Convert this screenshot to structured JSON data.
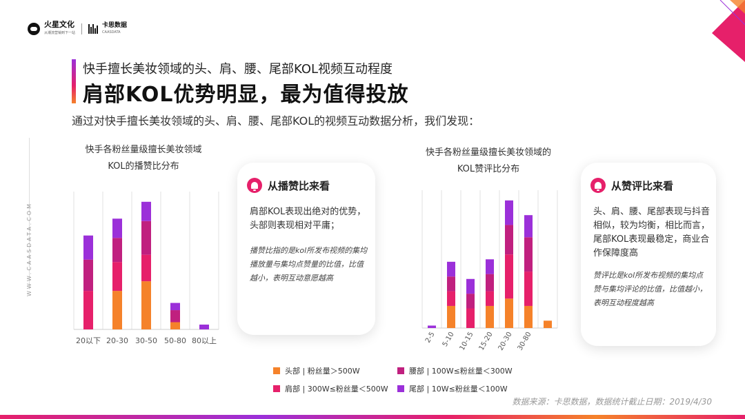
{
  "logo": {
    "brand1": "火星文化",
    "brand1_sub": "从潮流营销到下一站",
    "brand2": "卡思数据",
    "brand2_sub": "CAASDATA"
  },
  "header": {
    "subtitle": "快手擅长美妆领域的头、肩、腰、尾部KOL视频互动程度",
    "title": "肩部KOL优势明显，最为值得投放",
    "description": "通过对快手擅长美妆领域的头、肩、腰、尾部KOL的视频互动数据分析，我们发现："
  },
  "side_text": "WWW.CAASDATA.COM",
  "colors": {
    "head": "#f5822a",
    "shoulder": "#e6206a",
    "waist": "#c0207f",
    "tail": "#9b30d9",
    "accent": "#e6206a"
  },
  "chart_data": [
    {
      "type": "bar",
      "stacked": true,
      "title": "快手各粉丝量级擅长美妆领域KOL的播赞比分布",
      "categories": [
        "20以下",
        "20-30",
        "30-50",
        "50-80",
        "80以上"
      ],
      "series": [
        {
          "name": "头部 | 粉丝量＞500W",
          "values": [
            0,
            16,
            20,
            3,
            0
          ]
        },
        {
          "name": "肩部 | 300W≤粉丝量＜500W",
          "values": [
            16,
            12,
            11,
            0,
            0
          ]
        },
        {
          "name": "腰部 | 100W≤粉丝量＜300W",
          "values": [
            13,
            10,
            14,
            5,
            0
          ]
        },
        {
          "name": "尾部 | 10W≤粉丝量＜100W",
          "values": [
            10,
            8,
            8,
            3,
            2
          ]
        }
      ],
      "grid": "vertical"
    },
    {
      "type": "bar",
      "stacked": true,
      "title": "快手各粉丝量级擅长美妆领域的KOL赞评比分布",
      "categories": [
        "2-5",
        "5-10",
        "10-15",
        "15-20",
        "20-30",
        "30-80",
        ""
      ],
      "series": [
        {
          "name": "头部 | 粉丝量＞500W",
          "values": [
            0,
            9,
            0,
            9,
            12,
            9,
            3
          ]
        },
        {
          "name": "肩部 | 300W≤粉丝量＜500W",
          "values": [
            0,
            6,
            8,
            6,
            18,
            14,
            0
          ]
        },
        {
          "name": "腰部 | 100W≤粉丝量＜300W",
          "values": [
            0,
            6,
            6,
            7,
            12,
            14,
            0
          ]
        },
        {
          "name": "尾部 | 10W≤粉丝量＜100W",
          "values": [
            1,
            6,
            6,
            6,
            10,
            9,
            0
          ]
        }
      ],
      "grid": "vertical"
    }
  ],
  "cards": [
    {
      "heading": "从播赞比来看",
      "main": "肩部KOL表现出绝对的优势，头部则表现相对平庸；",
      "note": "播赞比指的是kol所发布视频的集均播放量与集均点赞量的比值，比值越小，表明互动意愿越高"
    },
    {
      "heading": "从赞评比来看",
      "main": "头、肩、腰、尾部表现与抖音相似，较为均衡，相比而言，尾部KOL表现最稳定，商业合作保障度高",
      "note": "赞评比是kol所发布视频的集均点赞与集均评论的比值，比值越小，表明互动程度越高"
    }
  ],
  "legend": [
    {
      "label": "头部 | 粉丝量＞500W",
      "color": "#f5822a"
    },
    {
      "label": "腰部 | 100W≤粉丝量＜300W",
      "color": "#c0207f"
    },
    {
      "label": "肩部 | 300W≤粉丝量＜500W",
      "color": "#e6206a"
    },
    {
      "label": "尾部 | 10W≤粉丝量＜100W",
      "color": "#9b30d9"
    }
  ],
  "source": "数据来源：卡思数据，数据统计截止日期：2019/4/30"
}
